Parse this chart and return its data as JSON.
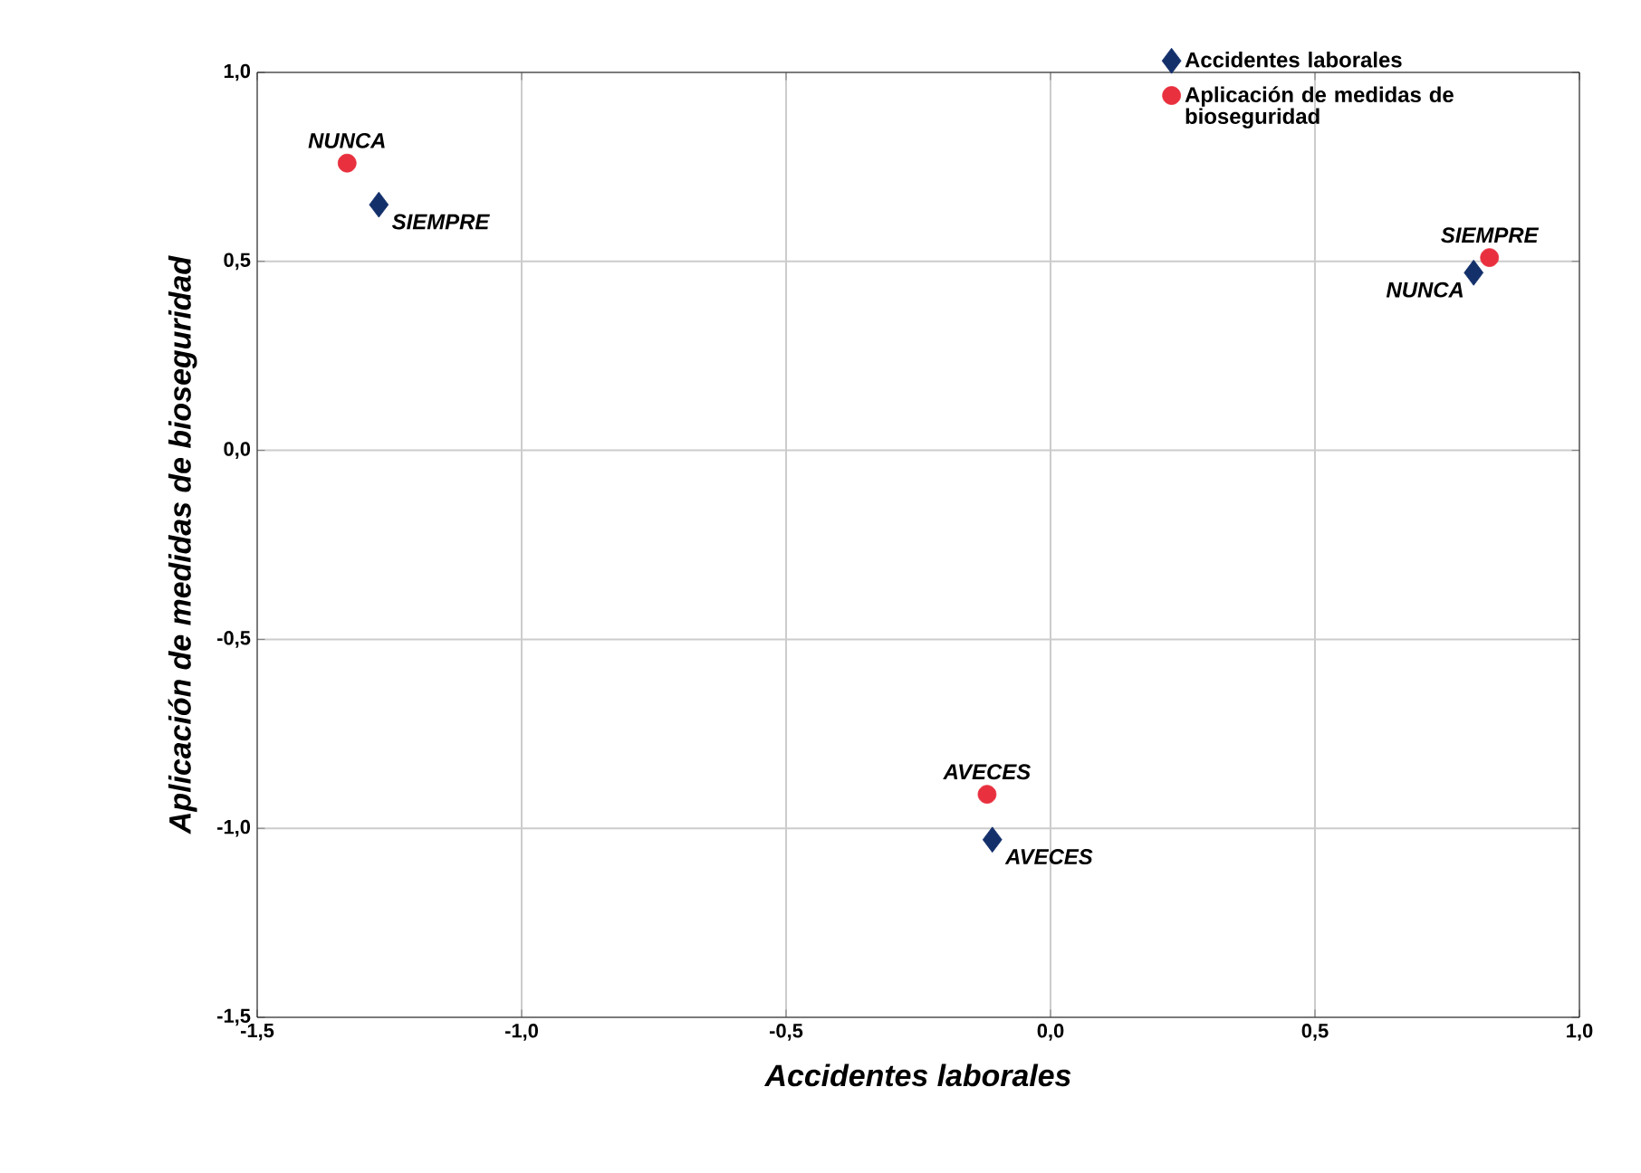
{
  "chart_data": {
    "type": "scatter",
    "xlabel": "Accidentes laborales",
    "ylabel": "Aplicación de medidas de bioseguridad",
    "xlim": [
      -1.5,
      1.0
    ],
    "ylim": [
      -1.5,
      1.0
    ],
    "xticks": [
      {
        "value": -1.5,
        "label": "-1,5"
      },
      {
        "value": -1.0,
        "label": "-1,0"
      },
      {
        "value": -0.5,
        "label": "-0,5"
      },
      {
        "value": 0.0,
        "label": "0,0"
      },
      {
        "value": 0.5,
        "label": "0,5"
      },
      {
        "value": 1.0,
        "label": "1,0"
      }
    ],
    "yticks": [
      {
        "value": -1.5,
        "label": "-1,5"
      },
      {
        "value": -1.0,
        "label": "-1,0"
      },
      {
        "value": -0.5,
        "label": "-0,5"
      },
      {
        "value": 0.0,
        "label": "0,0"
      },
      {
        "value": 0.5,
        "label": "0,5"
      },
      {
        "value": 1.0,
        "label": "1,0"
      }
    ],
    "grid": true,
    "legend": "top right",
    "series": [
      {
        "name": "Accidentes laborales",
        "color": "#13306b",
        "marker": "diamond",
        "x": [
          -1.27,
          -0.11,
          0.8
        ],
        "values": [
          0.65,
          -1.03,
          0.47
        ]
      },
      {
        "name": "Aplicación de medidas de bioseguridad",
        "color": "#e8303e",
        "marker": "circle",
        "x": [
          -1.33,
          -0.12,
          0.83
        ],
        "values": [
          0.76,
          -0.91,
          0.51
        ]
      }
    ],
    "annotations": [
      {
        "text": "SIEMPRE",
        "x": -1.27,
        "y": 0.65
      },
      {
        "text": "AVECES",
        "x": -0.11,
        "y": -1.03
      },
      {
        "text": "NUNCA",
        "x": 0.8,
        "y": 0.47
      },
      {
        "text": "NUNCA",
        "x": -1.33,
        "y": 0.76
      },
      {
        "text": "AVECES",
        "x": -0.12,
        "y": -0.91
      },
      {
        "text": "SIEMPRE",
        "x": 0.83,
        "y": 0.51
      }
    ]
  }
}
